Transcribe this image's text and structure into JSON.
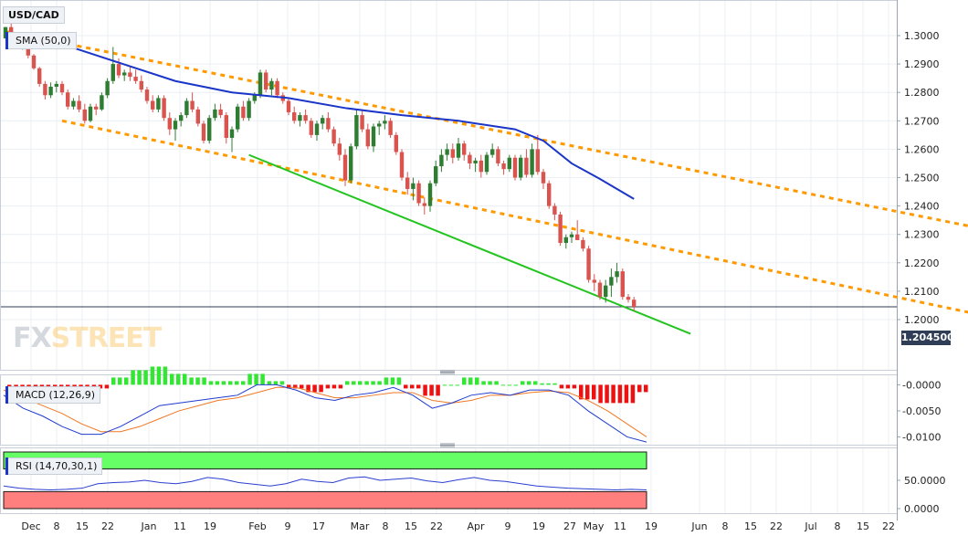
{
  "symbol": "USD/CAD",
  "legend": {
    "sma": "SMA (50,0)",
    "macd": "MACD (12,26,9)",
    "rsi": "RSI (14,70,30,1)"
  },
  "watermark": {
    "part1": "FX",
    "part2": "STREET"
  },
  "current_price_label": "1.204500",
  "colors": {
    "bull": "#2e7d32",
    "bear": "#d9534f",
    "sma": "#1a35c7",
    "channel": "#ff9900",
    "trendline": "#22c41e",
    "macd_line": "#1f3ccf",
    "signal_line": "#f07822",
    "hist_pos": "#33e633",
    "hist_neg": "#ee1111",
    "rsi_line": "#2b3fd1",
    "rsi_overbought": "#66ff66",
    "rsi_oversold": "#ff7f7f",
    "price_line": "#2f3d56"
  },
  "chart_data": [
    {
      "type": "candlestick",
      "title": "USD/CAD",
      "ylim": [
        1.1945,
        1.3105
      ],
      "y_ticks": [
        "1.3000",
        "1.2900",
        "1.2800",
        "1.2700",
        "1.2600",
        "1.2500",
        "1.2400",
        "1.2300",
        "1.2200",
        "1.2100",
        "1.2000"
      ],
      "x_ticks": [
        "Dec",
        "8",
        "15",
        "22",
        "Jan",
        "11",
        "19",
        "Feb",
        "9",
        "17",
        "Mar",
        "8",
        "15",
        "22",
        "Apr",
        "9",
        "19",
        "27",
        "May",
        "11",
        "19",
        "Jun",
        "8",
        "15",
        "22",
        "Jul",
        "8",
        "15",
        "22"
      ],
      "current_price": 1.2045,
      "candles": [
        [
          1.299,
          1.303,
          1.299,
          1.303
        ],
        [
          1.303,
          1.306,
          1.299,
          1.3
        ],
        [
          1.3,
          1.301,
          1.2965,
          1.2975
        ],
        [
          1.2975,
          1.298,
          1.295,
          1.2955
        ],
        [
          1.2955,
          1.296,
          1.292,
          1.293
        ],
        [
          1.293,
          1.2935,
          1.288,
          1.2885
        ],
        [
          1.2885,
          1.289,
          1.282,
          1.283
        ],
        [
          1.283,
          1.284,
          1.2775,
          1.279
        ],
        [
          1.279,
          1.2835,
          1.278,
          1.282
        ],
        [
          1.282,
          1.284,
          1.28,
          1.283
        ],
        [
          1.283,
          1.284,
          1.279,
          1.28
        ],
        [
          1.28,
          1.281,
          1.274,
          1.275
        ],
        [
          1.275,
          1.278,
          1.274,
          1.277
        ],
        [
          1.277,
          1.279,
          1.273,
          1.274
        ],
        [
          1.274,
          1.276,
          1.269,
          1.27
        ],
        [
          1.27,
          1.276,
          1.2695,
          1.275
        ],
        [
          1.275,
          1.276,
          1.272,
          1.274
        ],
        [
          1.274,
          1.28,
          1.2735,
          1.279
        ],
        [
          1.279,
          1.285,
          1.278,
          1.284
        ],
        [
          1.284,
          1.296,
          1.283,
          1.29
        ],
        [
          1.29,
          1.292,
          1.285,
          1.286
        ],
        [
          1.286,
          1.288,
          1.284,
          1.287
        ],
        [
          1.287,
          1.289,
          1.284,
          1.2855
        ],
        [
          1.2855,
          1.288,
          1.283,
          1.284
        ],
        [
          1.284,
          1.286,
          1.28,
          1.281
        ],
        [
          1.281,
          1.282,
          1.276,
          1.277
        ],
        [
          1.277,
          1.279,
          1.273,
          1.274
        ],
        [
          1.274,
          1.279,
          1.273,
          1.278
        ],
        [
          1.278,
          1.279,
          1.27,
          1.271
        ],
        [
          1.271,
          1.273,
          1.265,
          1.267
        ],
        [
          1.267,
          1.271,
          1.263,
          1.27
        ],
        [
          1.27,
          1.273,
          1.268,
          1.272
        ],
        [
          1.272,
          1.278,
          1.271,
          1.277
        ],
        [
          1.277,
          1.28,
          1.273,
          1.274
        ],
        [
          1.274,
          1.275,
          1.268,
          1.269
        ],
        [
          1.269,
          1.27,
          1.262,
          1.263
        ],
        [
          1.263,
          1.272,
          1.262,
          1.271
        ],
        [
          1.271,
          1.276,
          1.27,
          1.274
        ],
        [
          1.274,
          1.276,
          1.271,
          1.272
        ],
        [
          1.272,
          1.273,
          1.262,
          1.264
        ],
        [
          1.264,
          1.268,
          1.259,
          1.267
        ],
        [
          1.267,
          1.276,
          1.266,
          1.275
        ],
        [
          1.275,
          1.277,
          1.27,
          1.271
        ],
        [
          1.271,
          1.278,
          1.27,
          1.277
        ],
        [
          1.277,
          1.28,
          1.276,
          1.279
        ],
        [
          1.279,
          1.288,
          1.278,
          1.287
        ],
        [
          1.287,
          1.288,
          1.28,
          1.281
        ],
        [
          1.281,
          1.285,
          1.279,
          1.284
        ],
        [
          1.284,
          1.285,
          1.278,
          1.279
        ],
        [
          1.279,
          1.28,
          1.276,
          1.277
        ],
        [
          1.277,
          1.278,
          1.272,
          1.273
        ],
        [
          1.273,
          1.275,
          1.269,
          1.27
        ],
        [
          1.27,
          1.273,
          1.268,
          1.272
        ],
        [
          1.272,
          1.274,
          1.269,
          1.27
        ],
        [
          1.27,
          1.271,
          1.264,
          1.265
        ],
        [
          1.265,
          1.27,
          1.263,
          1.269
        ],
        [
          1.269,
          1.272,
          1.267,
          1.271
        ],
        [
          1.271,
          1.273,
          1.266,
          1.267
        ],
        [
          1.267,
          1.268,
          1.261,
          1.262
        ],
        [
          1.262,
          1.264,
          1.256,
          1.258
        ],
        [
          1.258,
          1.26,
          1.247,
          1.249
        ],
        [
          1.249,
          1.262,
          1.248,
          1.261
        ],
        [
          1.261,
          1.274,
          1.26,
          1.272
        ],
        [
          1.272,
          1.274,
          1.266,
          1.267
        ],
        [
          1.267,
          1.269,
          1.26,
          1.261
        ],
        [
          1.261,
          1.269,
          1.259,
          1.268
        ],
        [
          1.268,
          1.27,
          1.265,
          1.269
        ],
        [
          1.269,
          1.272,
          1.267,
          1.27
        ],
        [
          1.27,
          1.271,
          1.264,
          1.265
        ],
        [
          1.265,
          1.266,
          1.258,
          1.259
        ],
        [
          1.259,
          1.26,
          1.249,
          1.25
        ],
        [
          1.25,
          1.252,
          1.244,
          1.246
        ],
        [
          1.246,
          1.25,
          1.242,
          1.248
        ],
        [
          1.248,
          1.249,
          1.24,
          1.241
        ],
        [
          1.241,
          1.243,
          1.237,
          1.24
        ],
        [
          1.24,
          1.249,
          1.238,
          1.248
        ],
        [
          1.248,
          1.256,
          1.247,
          1.254
        ],
        [
          1.254,
          1.26,
          1.252,
          1.258
        ],
        [
          1.258,
          1.262,
          1.256,
          1.26
        ],
        [
          1.26,
          1.262,
          1.255,
          1.257
        ],
        [
          1.257,
          1.264,
          1.256,
          1.262
        ],
        [
          1.262,
          1.263,
          1.256,
          1.258
        ],
        [
          1.258,
          1.259,
          1.253,
          1.255
        ],
        [
          1.255,
          1.257,
          1.252,
          1.256
        ],
        [
          1.256,
          1.258,
          1.25,
          1.252
        ],
        [
          1.252,
          1.259,
          1.251,
          1.258
        ],
        [
          1.258,
          1.262,
          1.257,
          1.26
        ],
        [
          1.26,
          1.261,
          1.254,
          1.255
        ],
        [
          1.255,
          1.256,
          1.251,
          1.253
        ],
        [
          1.253,
          1.258,
          1.252,
          1.257
        ],
        [
          1.257,
          1.258,
          1.249,
          1.25
        ],
        [
          1.25,
          1.258,
          1.249,
          1.257
        ],
        [
          1.257,
          1.26,
          1.25,
          1.251
        ],
        [
          1.251,
          1.262,
          1.25,
          1.26
        ],
        [
          1.26,
          1.265,
          1.251,
          1.252
        ],
        [
          1.252,
          1.253,
          1.246,
          1.248
        ],
        [
          1.248,
          1.249,
          1.239,
          1.24
        ],
        [
          1.24,
          1.241,
          1.235,
          1.237
        ],
        [
          1.237,
          1.238,
          1.226,
          1.227
        ],
        [
          1.227,
          1.23,
          1.225,
          1.229
        ],
        [
          1.229,
          1.231,
          1.227,
          1.23
        ],
        [
          1.23,
          1.235,
          1.228,
          1.228
        ],
        [
          1.228,
          1.229,
          1.224,
          1.225
        ],
        [
          1.225,
          1.226,
          1.213,
          1.214
        ],
        [
          1.214,
          1.216,
          1.21,
          1.213
        ],
        [
          1.213,
          1.214,
          1.207,
          1.208
        ],
        [
          1.208,
          1.214,
          1.206,
          1.212
        ],
        [
          1.212,
          1.218,
          1.208,
          1.215
        ],
        [
          1.215,
          1.22,
          1.213,
          1.217
        ],
        [
          1.217,
          1.218,
          1.207,
          1.208
        ],
        [
          1.208,
          1.209,
          1.206,
          1.207
        ],
        [
          1.207,
          1.208,
          1.203,
          1.2045
        ]
      ],
      "sma_50": [
        [
          0,
          1.301
        ],
        [
          10,
          1.297
        ],
        [
          20,
          1.2905
        ],
        [
          30,
          1.284
        ],
        [
          40,
          1.28
        ],
        [
          50,
          1.278
        ],
        [
          60,
          1.2745
        ],
        [
          70,
          1.272
        ],
        [
          80,
          1.27
        ],
        [
          90,
          1.267
        ],
        [
          95,
          1.263
        ],
        [
          100,
          1.255
        ],
        [
          105,
          1.2495
        ],
        [
          111,
          1.2425
        ]
      ],
      "channel_lines": [
        {
          "from": [
            0,
            1.3015
          ],
          "to": [
            175,
            1.231
          ]
        },
        {
          "from": [
            10,
            1.27
          ],
          "to": [
            175,
            1.2005
          ]
        }
      ],
      "trendline": {
        "from": [
          43,
          1.258
        ],
        "to": [
          121,
          1.195
        ]
      }
    },
    {
      "type": "line",
      "title": "MACD (12,26,9)",
      "ylim": [
        -0.0115,
        0.002
      ],
      "y_ticks": [
        "-0.0000",
        "-0.0050",
        "-0.0100"
      ],
      "series": [
        {
          "name": "MACD",
          "values": [
            -0.002,
            -0.0045,
            -0.006,
            -0.008,
            -0.0095,
            -0.0095,
            -0.008,
            -0.006,
            -0.004,
            -0.0035,
            -0.003,
            -0.0025,
            -0.002,
            -0.0,
            0.0,
            -0.001,
            -0.0025,
            -0.003,
            -0.002,
            -0.0015,
            -0.0005,
            -0.002,
            -0.0045,
            -0.0035,
            -0.002,
            -0.0015,
            -0.002,
            -0.001,
            -0.001,
            -0.002,
            -0.005,
            -0.0075,
            -0.01,
            -0.011
          ]
        },
        {
          "name": "Signal",
          "values": [
            -0.001,
            -0.0025,
            -0.004,
            -0.0055,
            -0.0075,
            -0.009,
            -0.009,
            -0.008,
            -0.0065,
            -0.005,
            -0.004,
            -0.003,
            -0.0025,
            -0.0015,
            -0.0005,
            -0.0005,
            -0.0015,
            -0.0025,
            -0.0025,
            -0.002,
            -0.0015,
            -0.0015,
            -0.003,
            -0.0035,
            -0.003,
            -0.002,
            -0.002,
            -0.0015,
            -0.0012,
            -0.0015,
            -0.003,
            -0.005,
            -0.0075,
            -0.01
          ]
        }
      ]
    },
    {
      "type": "line",
      "title": "RSI (14,70,30,1)",
      "ylim": [
        0,
        100
      ],
      "y_ticks": [
        "50.0000",
        "0.0000"
      ],
      "overbought": 70,
      "oversold": 30,
      "series": [
        {
          "name": "RSI",
          "values": [
            40,
            36,
            34,
            33,
            34,
            36,
            44,
            46,
            47,
            50,
            46,
            44,
            48,
            55,
            52,
            46,
            43,
            40,
            44,
            52,
            48,
            46,
            54,
            56,
            50,
            52,
            54,
            49,
            46,
            51,
            55,
            50,
            48,
            44,
            40,
            38,
            36,
            35,
            34,
            33,
            34,
            33
          ]
        }
      ]
    }
  ]
}
